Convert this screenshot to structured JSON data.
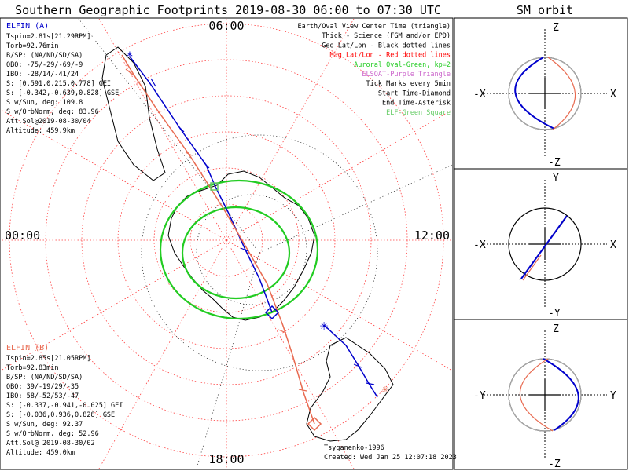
{
  "title": "Southern Geographic Footprints 2019-08-30 06:00 to 07:30 UTC",
  "orbit_title": "SM orbit",
  "clock": {
    "top": "06:00",
    "left": "00:00",
    "right": "12:00",
    "bottom": "18:00"
  },
  "elfin_a": {
    "name": "ELFIN (A)",
    "lines": [
      "Tspin=2.81s[21.29RPM]",
      "Torb=92.76min",
      "B/SP: (NA/ND/SD/SA)",
      "OBO: -75/-29/-69/-9",
      "IBO: -28/14/-41/24",
      "S: [0.591,0.215,0.778] GEI",
      "S: [-0.342,-0.639,0.828] GSE",
      "S w/Sun, deg: 109.8",
      "S w/OrbNorm, deg: 83.96",
      "Att.Sol@2019-08-30/04",
      "Altitude: 459.9km"
    ]
  },
  "elfin_b": {
    "name": "ELFIN (B)",
    "lines": [
      "Tspin=2.85s[21.05RPM]",
      "Torb=92.83min",
      "B/SP: (NA/ND/SD/SA)",
      "OBO: 39/-19/29/-35",
      "IBO: 58/-52/53/-47",
      "S: [-0.337,-0.941,-0.025] GEI",
      "S: [-0.036,0.936,0.828] GSE",
      "S w/Sun, deg: 92.37",
      "S w/OrbNorm, deg: 52.96",
      "Att.Sol@ 2019-08-30/02",
      "Altitude: 459.0km"
    ]
  },
  "legend": [
    {
      "text": "Earth/Oval View Center Time (triangle)",
      "color": "#000000"
    },
    {
      "text": "Thick - Science (FGM and/or EPD)",
      "color": "#000000"
    },
    {
      "text": "Geo Lat/Lon - Black dotted lines",
      "color": "#000000"
    },
    {
      "text": "Mag Lat/Lon - Red dotted lines",
      "color": "#ff0000"
    },
    {
      "text": "Auroral Oval-Green, kp=2",
      "color": "#22cc22"
    },
    {
      "text": "ELSOAT-Purple Triangle",
      "color": "#cc66cc"
    },
    {
      "text": "Tick Marks every 5min",
      "color": "#000000"
    },
    {
      "text": "Start Time-Diamond",
      "color": "#000000"
    },
    {
      "text": "End Time-Asterisk",
      "color": "#000000"
    },
    {
      "text": "ELF-Green Square",
      "color": "#66cc66"
    }
  ],
  "footer": {
    "model": "Tsyganenko-1996",
    "created": "Created: Wed Jan 25 12:07:18 2023"
  },
  "orbit_panels": [
    {
      "top": "Z",
      "bottom": "-Z",
      "left": "-X",
      "right": "X"
    },
    {
      "top": "Y",
      "bottom": "-Y",
      "left": "-X",
      "right": "X"
    },
    {
      "top": "Z",
      "bottom": "-Z",
      "left": "-Y",
      "right": "Y"
    }
  ],
  "colors": {
    "elfin_a": "#0000cc",
    "elfin_b": "#e86a50",
    "oval": "#22cc22",
    "grid_mag": "#ff4040",
    "grid_geo": "#000000",
    "elf_square": "#66cc66"
  }
}
